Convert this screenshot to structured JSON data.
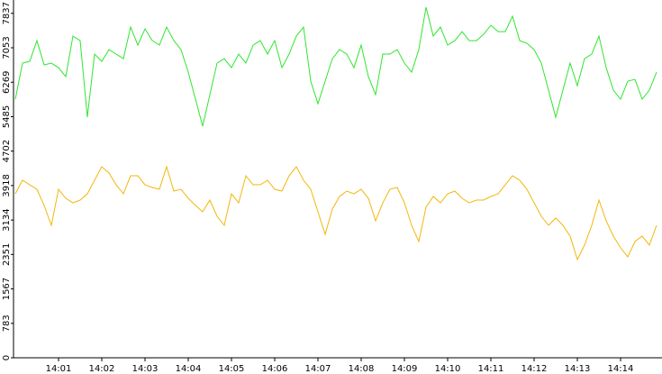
{
  "chart_data": {
    "type": "line",
    "categories": [
      null,
      null,
      null,
      null,
      null,
      null,
      "14:01",
      null,
      null,
      null,
      null,
      null,
      "14:02",
      null,
      null,
      null,
      null,
      null,
      "14:03",
      null,
      null,
      null,
      null,
      null,
      "14:04",
      null,
      null,
      null,
      null,
      null,
      "14:05",
      null,
      null,
      null,
      null,
      null,
      "14:06",
      null,
      null,
      null,
      null,
      null,
      "14:07",
      null,
      null,
      null,
      null,
      null,
      "14:08",
      null,
      null,
      null,
      null,
      null,
      "14:09",
      null,
      null,
      null,
      null,
      null,
      "14:10",
      null,
      null,
      null,
      null,
      null,
      "14:11",
      null,
      null,
      null,
      null,
      null,
      "14:12",
      null,
      null,
      null,
      null,
      null,
      "14:13",
      null,
      null,
      null,
      null,
      null,
      "14:14",
      null,
      null,
      null,
      null,
      null
    ],
    "series": [
      {
        "color": "#2ee62e",
        "values": [
          5884,
          6704,
          6745,
          7216,
          6663,
          6704,
          6601,
          6396,
          7319,
          7216,
          5474,
          6909,
          6745,
          7011,
          6909,
          6806,
          7524,
          7114,
          7483,
          7216,
          7114,
          7524,
          7216,
          7011,
          6499,
          5884,
          5269,
          5986,
          6704,
          6806,
          6601,
          6909,
          6704,
          7114,
          7216,
          6909,
          7216,
          6601,
          6909,
          7319,
          7524,
          6294,
          5781,
          6294,
          6806,
          7011,
          6909,
          6601,
          7114,
          6396,
          5986,
          6909,
          6909,
          7011,
          6704,
          6499,
          7011,
          7975,
          7319,
          7524,
          7114,
          7216,
          7421,
          7216,
          7216,
          7360,
          7565,
          7421,
          7421,
          7770,
          7216,
          7155,
          7011,
          6704,
          6089,
          5474,
          6089,
          6704,
          6191,
          6806,
          6909,
          7319,
          6601,
          6089,
          5884,
          6294,
          6335,
          5884,
          6089,
          6499
        ]
      },
      {
        "color": "#f2b70a",
        "values": [
          3731,
          4039,
          3936,
          3834,
          3465,
          3014,
          3834,
          3629,
          3526,
          3588,
          3731,
          4039,
          4346,
          4203,
          3936,
          3731,
          4141,
          4141,
          3936,
          3875,
          3834,
          4346,
          3793,
          3834,
          3629,
          3465,
          3321,
          3588,
          3219,
          3014,
          3731,
          3526,
          4141,
          3936,
          3936,
          4039,
          3834,
          3793,
          4141,
          4346,
          4039,
          3834,
          3321,
          2809,
          3383,
          3670,
          3793,
          3731,
          3834,
          3629,
          3116,
          3526,
          3834,
          3875,
          3526,
          3014,
          2645,
          3424,
          3670,
          3526,
          3731,
          3793,
          3629,
          3526,
          3588,
          3588,
          3670,
          3731,
          3936,
          4141,
          4039,
          3834,
          3526,
          3219,
          3014,
          3178,
          3014,
          2768,
          2235,
          2563,
          3014,
          3588,
          3116,
          2768,
          2501,
          2296,
          2645,
          2768,
          2563,
          3014
        ]
      }
    ],
    "ylim": [
      0,
      8140
    ],
    "yticks": [
      0,
      783,
      1567,
      2351,
      3134,
      3918,
      4702,
      5485,
      6269,
      7053,
      7837
    ],
    "grid": false
  }
}
